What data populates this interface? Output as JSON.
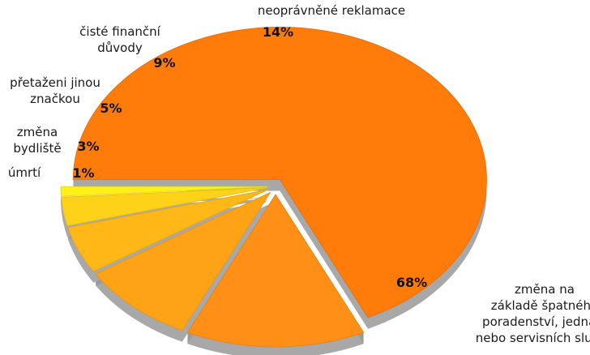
{
  "chart_data": {
    "type": "pie",
    "style": "3d-exploded",
    "slices": [
      {
        "label": [
          "změna na",
          "základě špatného",
          "poradenství, jednání",
          "nebo servisních služeb"
        ],
        "value": 68,
        "value_label": "68%",
        "color": "#ff7b0a"
      },
      {
        "label": [
          "neoprávněné reklamace"
        ],
        "value": 14,
        "value_label": "14%",
        "color": "#ff8f16"
      },
      {
        "label": [
          "čisté finanční",
          "důvody"
        ],
        "value": 9,
        "value_label": "9%",
        "color": "#ffa316"
      },
      {
        "label": [
          "přetaženi jinou",
          "značkou"
        ],
        "value": 5,
        "value_label": "5%",
        "color": "#ffb818"
      },
      {
        "label": [
          "změna",
          "bydliště"
        ],
        "value": 3,
        "value_label": "3%",
        "color": "#ffd21a"
      },
      {
        "label": [
          "úmrtí"
        ],
        "value": 1,
        "value_label": "1%",
        "color": "#fff018"
      }
    ]
  }
}
